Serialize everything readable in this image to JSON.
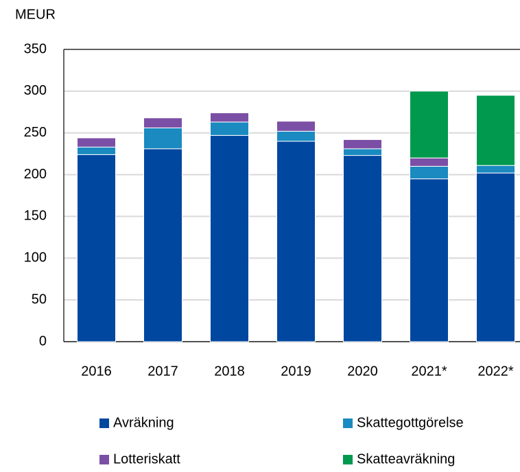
{
  "chart_data": {
    "type": "stacked_bar",
    "ylabel": "MEUR",
    "categories": [
      "2016",
      "2017",
      "2018",
      "2019",
      "2020",
      "2021*",
      "2022*"
    ],
    "series": [
      {
        "name": "Avräkning",
        "color": "#0047a0",
        "values": [
          224,
          231,
          247,
          240,
          223,
          195,
          202
        ]
      },
      {
        "name": "Skattegottgörelse",
        "color": "#1a8ac0",
        "values": [
          9,
          25,
          16,
          12,
          8,
          15,
          9
        ]
      },
      {
        "name": "Lotteriskatt",
        "color": "#7b4fa6",
        "values": [
          11,
          12,
          11,
          12,
          11,
          10,
          0
        ]
      },
      {
        "name": "Skatteavräkning",
        "color": "#00994d",
        "values": [
          0,
          0,
          0,
          0,
          0,
          80,
          84
        ]
      }
    ],
    "ylim": [
      0,
      350
    ],
    "yticks": [
      0,
      50,
      100,
      150,
      200,
      250,
      300,
      350
    ],
    "grid": true
  }
}
